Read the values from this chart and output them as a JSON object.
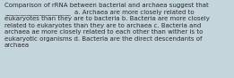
{
  "text": "Comparison of rRNA between bacterial and archaea suggest that\n_____________________  a. Archaea are more closely related to\neukaryotes than they are to bacteria b. Bacteria are more closely\nrelated to eukaryotes than they are to archaea c. Bacteria and\narchaea ae more closely related to each other than wither is to\neukaryotic organisms d. Bacteria are the direct descendants of\narchaea",
  "background_color": "#c5d5dc",
  "text_color": "#2a2a2a",
  "font_size": 5.0,
  "fig_width": 2.61,
  "fig_height": 0.88,
  "dpi": 100
}
